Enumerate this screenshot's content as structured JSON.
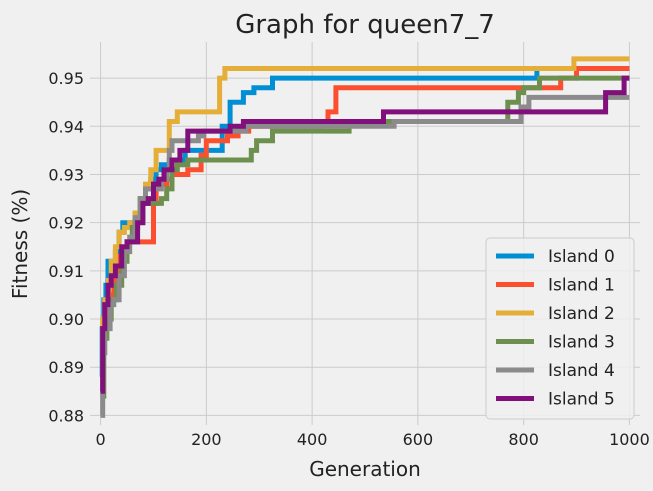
{
  "chart_data": {
    "type": "line",
    "title": "Graph for queen7_7",
    "xlabel": "Generation",
    "ylabel": "Fitness (%)",
    "xlim": [
      -20,
      1020
    ],
    "ylim": [
      0.878,
      0.9575
    ],
    "x_ticks": [
      0,
      200,
      400,
      600,
      800,
      1000
    ],
    "y_ticks": [
      0.88,
      0.89,
      0.9,
      0.91,
      0.92,
      0.93,
      0.94,
      0.95
    ],
    "grid": true,
    "legend_position": "lower-right",
    "series": [
      {
        "name": "Island 0",
        "color": "#008fd5",
        "points": [
          [
            0,
            0.888
          ],
          [
            3,
            0.898
          ],
          [
            6,
            0.904
          ],
          [
            10,
            0.907
          ],
          [
            14,
            0.912
          ],
          [
            22,
            0.912
          ],
          [
            28,
            0.914
          ],
          [
            35,
            0.918
          ],
          [
            42,
            0.92
          ],
          [
            55,
            0.92
          ],
          [
            65,
            0.922
          ],
          [
            75,
            0.925
          ],
          [
            85,
            0.927
          ],
          [
            95,
            0.929
          ],
          [
            105,
            0.931
          ],
          [
            115,
            0.932
          ],
          [
            130,
            0.933
          ],
          [
            160,
            0.935
          ],
          [
            225,
            0.935
          ],
          [
            230,
            0.94
          ],
          [
            245,
            0.945
          ],
          [
            270,
            0.947
          ],
          [
            290,
            0.948
          ],
          [
            325,
            0.95
          ],
          [
            820,
            0.95
          ],
          [
            825,
            0.952
          ],
          [
            1000,
            0.952
          ]
        ]
      },
      {
        "name": "Island 1",
        "color": "#fc4f30",
        "points": [
          [
            0,
            0.887
          ],
          [
            5,
            0.897
          ],
          [
            10,
            0.902
          ],
          [
            15,
            0.905
          ],
          [
            25,
            0.908
          ],
          [
            35,
            0.913
          ],
          [
            50,
            0.916
          ],
          [
            95,
            0.916
          ],
          [
            100,
            0.924
          ],
          [
            105,
            0.928
          ],
          [
            125,
            0.929
          ],
          [
            135,
            0.93
          ],
          [
            150,
            0.93
          ],
          [
            165,
            0.931
          ],
          [
            180,
            0.931
          ],
          [
            190,
            0.934
          ],
          [
            200,
            0.937
          ],
          [
            220,
            0.937
          ],
          [
            240,
            0.938
          ],
          [
            260,
            0.939
          ],
          [
            280,
            0.94
          ],
          [
            300,
            0.94
          ],
          [
            420,
            0.941
          ],
          [
            430,
            0.943
          ],
          [
            445,
            0.948
          ],
          [
            860,
            0.948
          ],
          [
            870,
            0.95
          ],
          [
            900,
            0.952
          ],
          [
            1000,
            0.952
          ]
        ]
      },
      {
        "name": "Island 2",
        "color": "#e5ae38",
        "points": [
          [
            0,
            0.888
          ],
          [
            4,
            0.9
          ],
          [
            8,
            0.904
          ],
          [
            15,
            0.908
          ],
          [
            20,
            0.912
          ],
          [
            28,
            0.915
          ],
          [
            35,
            0.918
          ],
          [
            45,
            0.919
          ],
          [
            55,
            0.92
          ],
          [
            65,
            0.922
          ],
          [
            75,
            0.925
          ],
          [
            85,
            0.928
          ],
          [
            95,
            0.931
          ],
          [
            105,
            0.935
          ],
          [
            125,
            0.935
          ],
          [
            130,
            0.941
          ],
          [
            145,
            0.943
          ],
          [
            215,
            0.943
          ],
          [
            225,
            0.95
          ],
          [
            235,
            0.952
          ],
          [
            890,
            0.952
          ],
          [
            895,
            0.954
          ],
          [
            1000,
            0.954
          ]
        ]
      },
      {
        "name": "Island 3",
        "color": "#6d904f",
        "points": [
          [
            0,
            0.884
          ],
          [
            6,
            0.896
          ],
          [
            12,
            0.9
          ],
          [
            20,
            0.904
          ],
          [
            30,
            0.907
          ],
          [
            40,
            0.912
          ],
          [
            50,
            0.916
          ],
          [
            60,
            0.919
          ],
          [
            70,
            0.921
          ],
          [
            80,
            0.924
          ],
          [
            105,
            0.924
          ],
          [
            115,
            0.925
          ],
          [
            125,
            0.927
          ],
          [
            135,
            0.931
          ],
          [
            145,
            0.932
          ],
          [
            165,
            0.933
          ],
          [
            275,
            0.933
          ],
          [
            285,
            0.935
          ],
          [
            295,
            0.937
          ],
          [
            315,
            0.937
          ],
          [
            325,
            0.939
          ],
          [
            465,
            0.939
          ],
          [
            470,
            0.941
          ],
          [
            765,
            0.941
          ],
          [
            770,
            0.945
          ],
          [
            790,
            0.947
          ],
          [
            800,
            0.948
          ],
          [
            830,
            0.95
          ],
          [
            1000,
            0.95
          ]
        ]
      },
      {
        "name": "Island 4",
        "color": "#8b8b8b",
        "points": [
          [
            0,
            0.88
          ],
          [
            4,
            0.893
          ],
          [
            8,
            0.898
          ],
          [
            18,
            0.903
          ],
          [
            25,
            0.904
          ],
          [
            35,
            0.909
          ],
          [
            45,
            0.914
          ],
          [
            55,
            0.917
          ],
          [
            65,
            0.921
          ],
          [
            75,
            0.925
          ],
          [
            85,
            0.927
          ],
          [
            115,
            0.929
          ],
          [
            125,
            0.931
          ],
          [
            130,
            0.935
          ],
          [
            135,
            0.937
          ],
          [
            175,
            0.937
          ],
          [
            185,
            0.938
          ],
          [
            195,
            0.939
          ],
          [
            270,
            0.939
          ],
          [
            275,
            0.94
          ],
          [
            550,
            0.94
          ],
          [
            555,
            0.941
          ],
          [
            790,
            0.941
          ],
          [
            795,
            0.944
          ],
          [
            810,
            0.946
          ],
          [
            1000,
            0.946
          ]
        ]
      },
      {
        "name": "Island 5",
        "color": "#810f7c",
        "points": [
          [
            0,
            0.885
          ],
          [
            4,
            0.898
          ],
          [
            8,
            0.903
          ],
          [
            14,
            0.907
          ],
          [
            20,
            0.909
          ],
          [
            28,
            0.911
          ],
          [
            40,
            0.915
          ],
          [
            50,
            0.916
          ],
          [
            70,
            0.92
          ],
          [
            80,
            0.924
          ],
          [
            90,
            0.925
          ],
          [
            100,
            0.928
          ],
          [
            110,
            0.929
          ],
          [
            120,
            0.931
          ],
          [
            135,
            0.933
          ],
          [
            150,
            0.935
          ],
          [
            165,
            0.939
          ],
          [
            240,
            0.939
          ],
          [
            245,
            0.94
          ],
          [
            270,
            0.941
          ],
          [
            530,
            0.941
          ],
          [
            535,
            0.943
          ],
          [
            950,
            0.943
          ],
          [
            955,
            0.947
          ],
          [
            990,
            0.95
          ],
          [
            1000,
            0.95
          ]
        ]
      }
    ]
  }
}
